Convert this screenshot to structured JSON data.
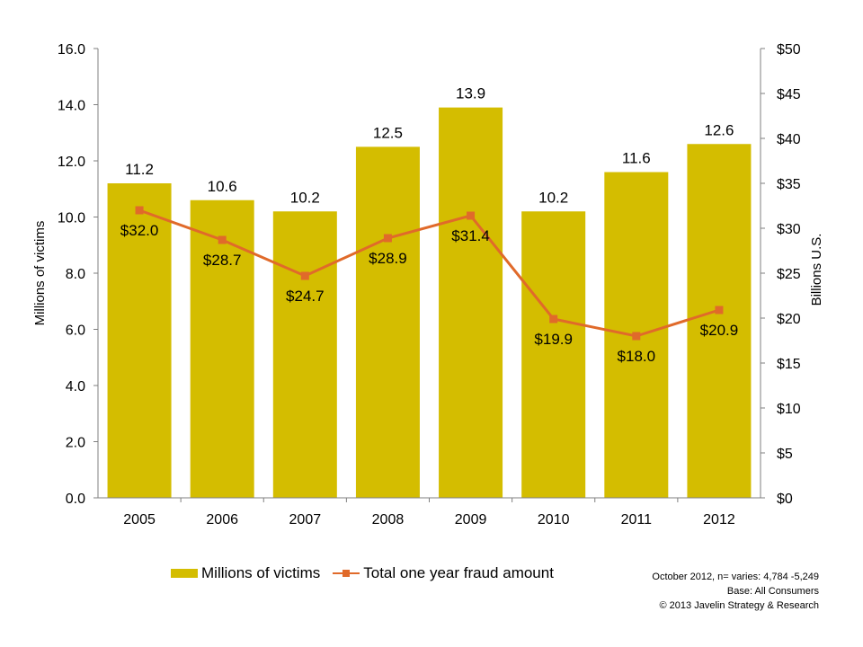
{
  "chart_data": {
    "type": "bar",
    "categories": [
      "2005",
      "2006",
      "2007",
      "2008",
      "2009",
      "2010",
      "2011",
      "2012"
    ],
    "series": [
      {
        "name": "Millions of victims",
        "type": "bar",
        "axis": "left",
        "values": [
          11.2,
          10.6,
          10.2,
          12.5,
          13.9,
          10.2,
          11.6,
          12.6
        ],
        "labels": [
          "11.2",
          "10.6",
          "10.2",
          "12.5",
          "13.9",
          "10.2",
          "11.6",
          "12.6"
        ]
      },
      {
        "name": "Total one year fraud amount",
        "type": "line",
        "axis": "right",
        "values": [
          32.0,
          28.7,
          24.7,
          28.9,
          31.4,
          19.9,
          18.0,
          20.9
        ],
        "labels": [
          "$32.0",
          "$28.7",
          "$24.7",
          "$28.9",
          "$31.4",
          "$19.9",
          "$18.0",
          "$20.9"
        ]
      }
    ],
    "ylabel": "Millions of victims",
    "y2label": "Billions U.S.",
    "ylim": [
      0,
      16
    ],
    "y2lim": [
      0,
      50
    ],
    "yticks": [
      "0.0",
      "2.0",
      "4.0",
      "6.0",
      "8.0",
      "10.0",
      "12.0",
      "14.0",
      "16.0"
    ],
    "y2ticks": [
      "$0",
      "$5",
      "$10",
      "$15",
      "$20",
      "$25",
      "$30",
      "$35",
      "$40",
      "$45",
      "$50"
    ],
    "legend_position": "bottom-left",
    "grid": false,
    "colors": {
      "bar": "#d4bd00",
      "line": "#e06a2a"
    }
  },
  "source": {
    "lines": [
      "October 2012, n= varies: 4,784 -5,249",
      "Base: All Consumers",
      "© 2013 Javelin Strategy & Research"
    ]
  }
}
